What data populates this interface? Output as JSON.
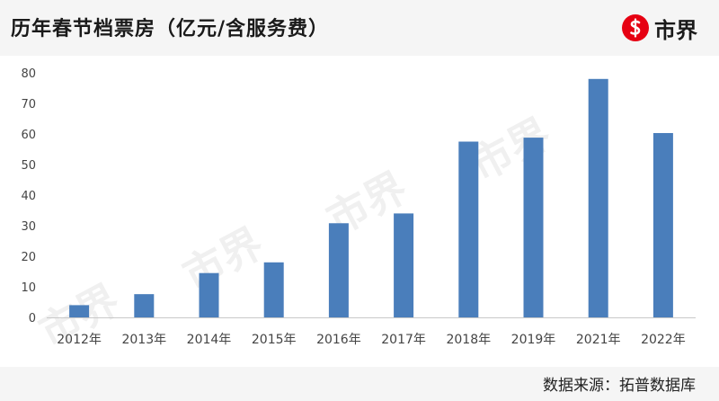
{
  "header": {
    "title": "历年春节档票房（亿元/含服务费）",
    "brand": "市界",
    "brand_color": "#e60012"
  },
  "footer": {
    "source": "数据来源：拓普数据库"
  },
  "watermark": "市界",
  "chart_data": {
    "type": "bar",
    "categories": [
      "2012年",
      "2013年",
      "2014年",
      "2015年",
      "2016年",
      "2017年",
      "2018年",
      "2019年",
      "2021年",
      "2022年"
    ],
    "values": [
      4,
      7.6,
      14.5,
      18,
      30.8,
      34,
      57.5,
      58.8,
      78,
      60.3
    ],
    "yticks": [
      0,
      10,
      20,
      30,
      40,
      50,
      60,
      70,
      80
    ],
    "ylim": [
      0,
      80
    ],
    "bar_color": "#4a7ebb",
    "grid": false
  }
}
